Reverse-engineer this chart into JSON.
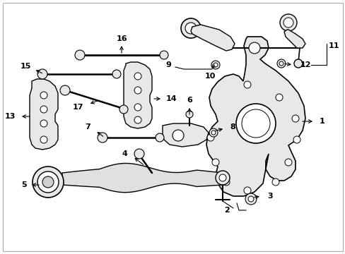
{
  "background_color": "#ffffff",
  "fig_width": 4.89,
  "fig_height": 3.6,
  "dpi": 100,
  "line_color": "#000000",
  "component_fill": "#d8d8d8",
  "component_edge": "#000000"
}
